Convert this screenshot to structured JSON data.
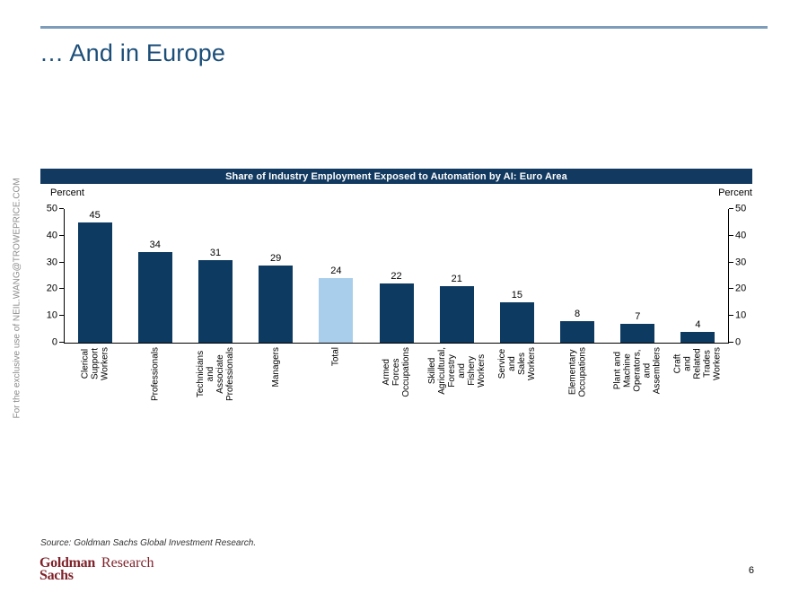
{
  "page": {
    "title": "… And in Europe",
    "watermark": "For the exclusive use of NEIL.WANG@TROWEPRICE.COM",
    "source_note": "Source: Goldman Sachs Global Investment Research.",
    "page_number": "6",
    "logo": {
      "line1": "Goldman",
      "line2": "Sachs",
      "division": "Research"
    }
  },
  "colors": {
    "bar_navy": "#0d3a61",
    "bar_highlight": "#a9ceeb",
    "title_bar_bg": "#12395f",
    "heading_navy": "#1b4e79",
    "top_rule": "#7d9cba",
    "logo_red": "#7f222a",
    "watermark_gray": "#8c8c8c"
  },
  "chart_data": {
    "type": "bar",
    "title": "Share of Industry Employment Exposed to Automation by AI: Euro Area",
    "axis_label_left": "Percent",
    "axis_label_right": "Percent",
    "ylim": [
      0,
      50
    ],
    "yticks": [
      0,
      10,
      20,
      30,
      40,
      50
    ],
    "grid": false,
    "legend": "none",
    "categories": [
      "Clerical Support Workers",
      "Professionals",
      "Technicians and Associate Professionals",
      "Managers",
      "Total",
      "Armed Forces Occupations",
      "Skilled Agricultural, Forestry and Fishery Workers",
      "Service and Sales Workers",
      "Elementary Occupations",
      "Plant and Machine Operators, and Assemblers",
      "Craft and Related Trades Workers"
    ],
    "labels": [
      "Clerical Support Workers",
      "Professionals",
      "Technicians and Associate\nProfessionals",
      "Managers",
      "Total",
      "Armed Forces Occupations",
      "Skilled Agricultural, Forestry and\nFishery Workers",
      "Service and Sales Workers",
      "Elementary Occupations",
      "Plant and Machine Operators,\nand Assemblers",
      "Craft and Related Trades\nWorkers"
    ],
    "values": [
      45,
      34,
      31,
      29,
      24,
      22,
      21,
      15,
      8,
      7,
      4
    ],
    "highlight_category": "Total",
    "bar_color": "#0d3a61",
    "highlight_color": "#a9ceeb"
  }
}
